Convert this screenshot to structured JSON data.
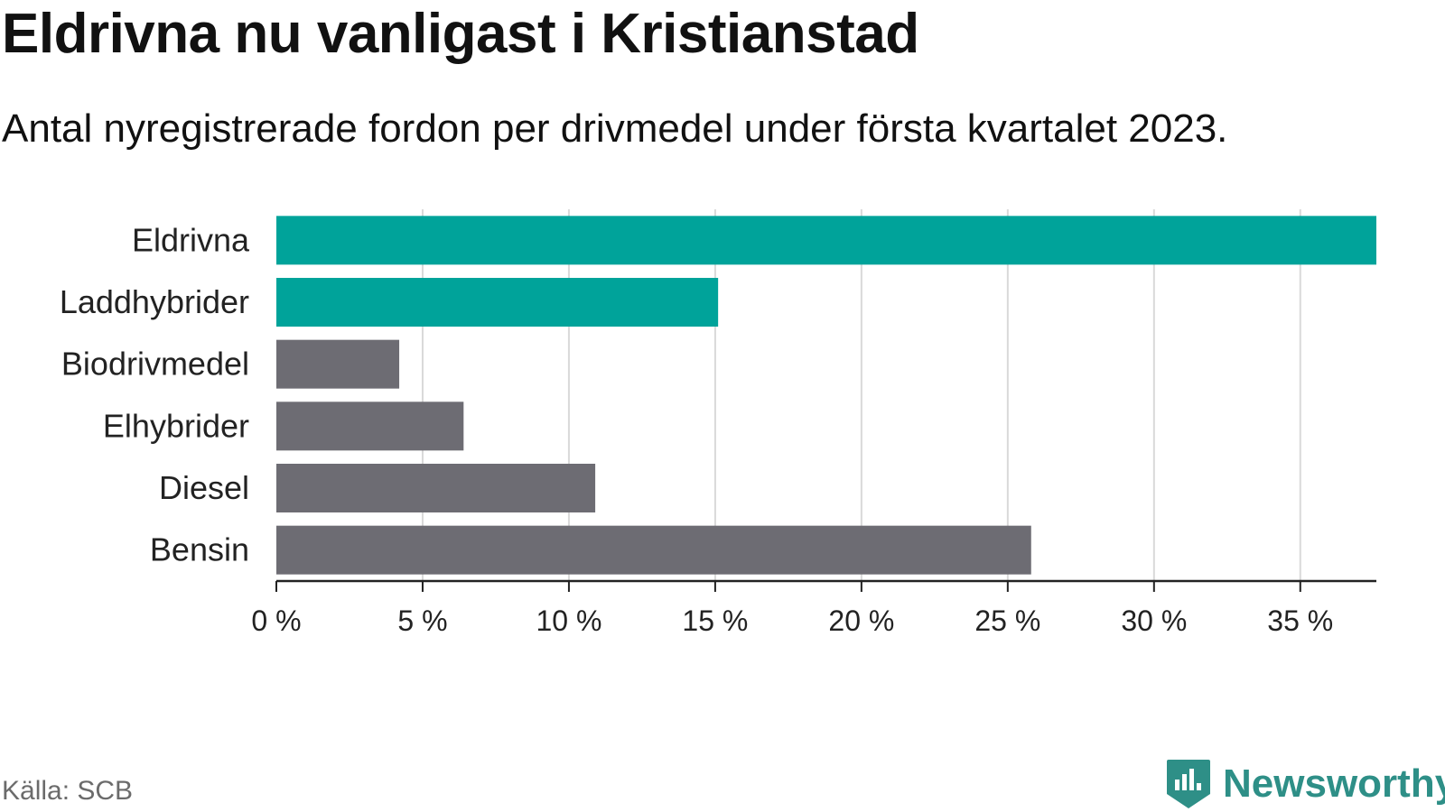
{
  "title": "Eldrivna nu vanligast i Kristianstad",
  "subtitle": "Antal nyregistrerade fordon per drivmedel under första kvartalet 2023.",
  "source": "Källa: SCB",
  "brand": "Newsworthy",
  "colors": {
    "highlight": "#00a39a",
    "neutral": "#6d6c73",
    "grid": "#d9d9d9",
    "axis": "#222222"
  },
  "chart_data": {
    "type": "bar",
    "orientation": "horizontal",
    "categories": [
      "Eldrivna",
      "Laddhybrider",
      "Biodrivmedel",
      "Elhybrider",
      "Diesel",
      "Bensin"
    ],
    "values": [
      37.6,
      15.1,
      4.2,
      6.4,
      10.9,
      25.8
    ],
    "highlight": [
      true,
      true,
      false,
      false,
      false,
      false
    ],
    "xlim": [
      0,
      37.6
    ],
    "xticks": [
      0,
      5,
      10,
      15,
      20,
      25,
      30,
      35
    ],
    "xtick_labels": [
      "0 %",
      "5 %",
      "10 %",
      "15 %",
      "20 %",
      "25 %",
      "30 %",
      "35 %"
    ],
    "grid": true
  }
}
